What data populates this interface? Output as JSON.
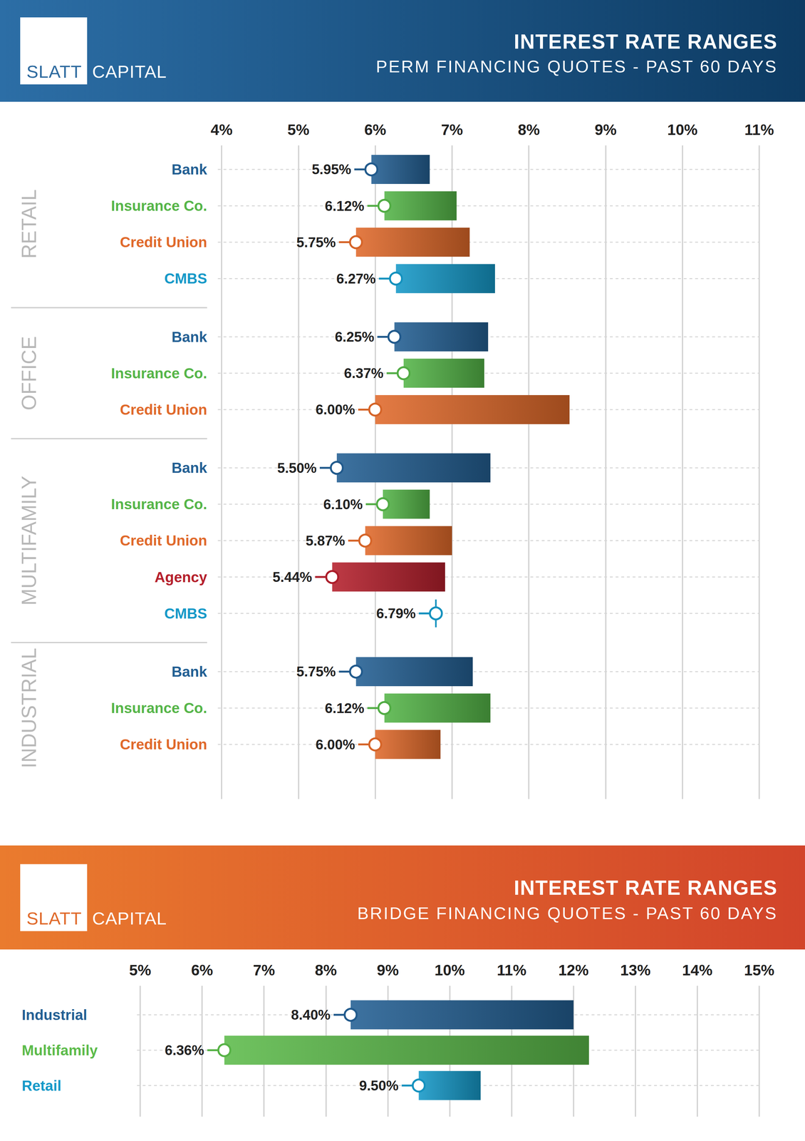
{
  "chart_data": [
    {
      "type": "range",
      "orientation": "horizontal",
      "title": "INTEREST RATE RANGES",
      "subtitle": "PERM FINANCING QUOTES - PAST 60 DAYS",
      "brand": [
        "SLATT",
        "CAPITAL"
      ],
      "xlim": [
        4,
        11
      ],
      "xticks": [
        {
          "value": 4,
          "label": "4%"
        },
        {
          "value": 5,
          "label": "5%"
        },
        {
          "value": 6,
          "label": "6%"
        },
        {
          "value": 7,
          "label": "7%"
        },
        {
          "value": 8,
          "label": "8%"
        },
        {
          "value": 9,
          "label": "9%"
        },
        {
          "value": 10,
          "label": "10%"
        },
        {
          "value": 11,
          "label": "11%"
        }
      ],
      "grid": true,
      "data_labels": true,
      "sections": [
        {
          "name": "RETAIL",
          "categories": [
            "Bank",
            "Insurance Co.",
            "Credit Union",
            "CMBS"
          ],
          "low": [
            5.95,
            6.12,
            5.75,
            6.27
          ],
          "high": [
            6.71,
            7.06,
            7.23,
            7.56
          ],
          "value_labels": [
            "5.95%",
            "6.12%",
            "5.75%",
            "6.27%"
          ],
          "colors": [
            "#235f93",
            "#55b548",
            "#e0692a",
            "#1599c8"
          ]
        },
        {
          "name": "OFFICE",
          "categories": [
            "Bank",
            "Insurance Co.",
            "Credit Union"
          ],
          "low": [
            6.25,
            6.37,
            6.0
          ],
          "high": [
            7.47,
            7.42,
            8.53
          ],
          "value_labels": [
            "6.25%",
            "6.37%",
            "6.00%"
          ],
          "colors": [
            "#235f93",
            "#55b548",
            "#e0692a"
          ]
        },
        {
          "name": "MULTIFAMILY",
          "categories": [
            "Bank",
            "Insurance Co.",
            "Credit Union",
            "Agency",
            "CMBS"
          ],
          "low": [
            5.5,
            6.1,
            5.87,
            5.44,
            6.79
          ],
          "high": [
            7.5,
            6.71,
            7.0,
            6.91,
            6.79
          ],
          "value_labels": [
            "5.50%",
            "6.10%",
            "5.87%",
            "5.44%",
            "6.79%"
          ],
          "colors": [
            "#235f93",
            "#55b548",
            "#e0692a",
            "#b51f2c",
            "#1599c8"
          ]
        },
        {
          "name": "INDUSTRIAL",
          "categories": [
            "Bank",
            "Insurance Co.",
            "Credit Union"
          ],
          "low": [
            5.75,
            6.12,
            6.0
          ],
          "high": [
            7.27,
            7.5,
            6.85
          ],
          "value_labels": [
            "5.75%",
            "6.12%",
            "6.00%"
          ],
          "colors": [
            "#235f93",
            "#55b548",
            "#e0692a"
          ]
        }
      ]
    },
    {
      "type": "range",
      "orientation": "horizontal",
      "title": "INTEREST RATE RANGES",
      "subtitle": "BRIDGE FINANCING QUOTES - PAST 60 DAYS",
      "brand": [
        "SLATT",
        "CAPITAL"
      ],
      "xlim": [
        5,
        15
      ],
      "xticks": [
        {
          "value": 5,
          "label": "5%"
        },
        {
          "value": 6,
          "label": "6%"
        },
        {
          "value": 7,
          "label": "7%"
        },
        {
          "value": 8,
          "label": "8%"
        },
        {
          "value": 9,
          "label": "9%"
        },
        {
          "value": 10,
          "label": "10%"
        },
        {
          "value": 11,
          "label": "11%"
        },
        {
          "value": 12,
          "label": "12%"
        },
        {
          "value": 13,
          "label": "13%"
        },
        {
          "value": 14,
          "label": "14%"
        },
        {
          "value": 15,
          "label": "15%"
        }
      ],
      "grid": true,
      "data_labels": true,
      "categories": [
        "Industrial",
        "Multifamily",
        "Retail"
      ],
      "low": [
        8.4,
        6.36,
        9.5
      ],
      "high": [
        12.0,
        12.25,
        10.5
      ],
      "value_labels": [
        "8.40%",
        "6.36%",
        "9.50%"
      ],
      "colors": [
        "#235f93",
        "#5cbb4a",
        "#1599c8"
      ]
    }
  ]
}
